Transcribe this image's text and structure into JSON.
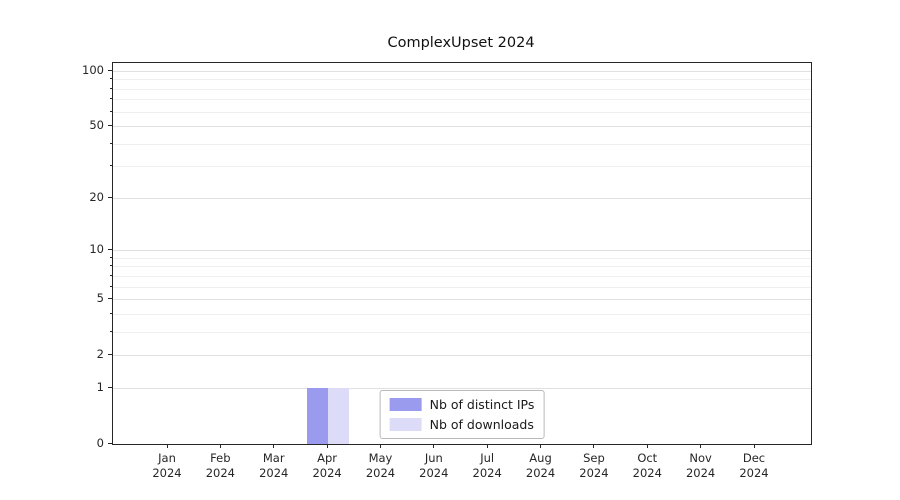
{
  "chart_data": {
    "type": "bar",
    "title": "ComplexUpset 2024",
    "x_ticks": [
      "Jan",
      "Feb",
      "Mar",
      "Apr",
      "May",
      "Jun",
      "Jul",
      "Aug",
      "Sep",
      "Oct",
      "Nov",
      "Dec"
    ],
    "x_year": "2024",
    "y_ticks": [
      0,
      1,
      2,
      5,
      10,
      20,
      50,
      100
    ],
    "y_minor_ticks": [
      3,
      4,
      6,
      7,
      8,
      9,
      30,
      40,
      60,
      70,
      80,
      90
    ],
    "y_scale": "log1p",
    "ylim": [
      0,
      110
    ],
    "xlabel": "",
    "ylabel": "",
    "grid": "both-horizontal",
    "legend_position": "lower center",
    "series": [
      {
        "name": "Nb of distinct IPs",
        "color": "#9a9aee",
        "values": [
          0,
          0,
          0,
          1,
          0,
          0,
          0,
          0,
          0,
          0,
          0,
          0
        ]
      },
      {
        "name": "Nb of downloads",
        "color": "#dcdcf8",
        "values": [
          0,
          0,
          0,
          1,
          0,
          0,
          0,
          0,
          0,
          0,
          0,
          0
        ]
      }
    ]
  },
  "colors": {
    "grid_major": "#e0e0e0",
    "grid_minor": "#efefef",
    "axis": "#262626",
    "text": "#262626",
    "legend_border": "#b9b9b9",
    "background": "#ffffff"
  }
}
